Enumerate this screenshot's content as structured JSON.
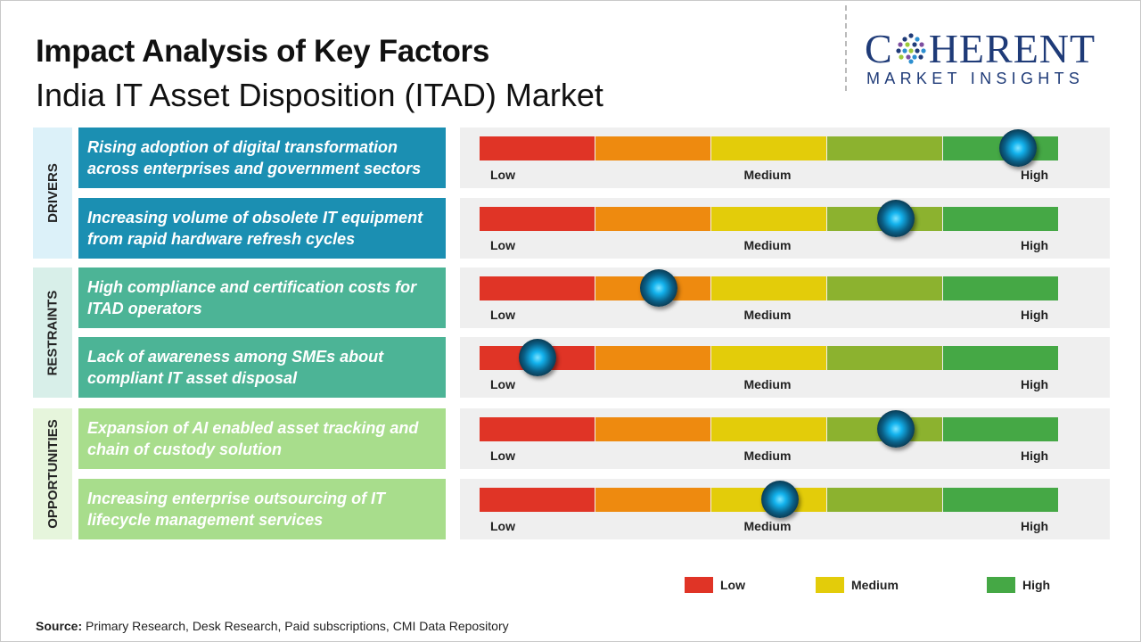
{
  "header": {
    "title": "Impact Analysis of Key Factors",
    "subtitle": "India IT Asset Disposition (ITAD) Market"
  },
  "logo": {
    "top_left": "C",
    "top_right": "HERENT",
    "bottom": "MARKET INSIGHTS",
    "color": "#1f3b78"
  },
  "chart_data": {
    "type": "table",
    "scale_labels": [
      "Low",
      "Medium",
      "High"
    ],
    "segment_colors": [
      "#e03426",
      "#ee8a0f",
      "#e3cc0a",
      "#8cb22f",
      "#45a845"
    ],
    "categories": [
      {
        "name": "DRIVERS",
        "color": "#dcf1f9",
        "factor_color": "#1b8fb2"
      },
      {
        "name": "RESTRAINTS",
        "color": "#d8efe9",
        "factor_color": "#4cb496"
      },
      {
        "name": "OPPORTUNITIES",
        "color": "#e6f5dc",
        "factor_color": "#a8dd8c"
      }
    ],
    "factors": [
      {
        "category": "DRIVERS",
        "text": "Rising adoption of digital transformation across enterprises and government sectors",
        "impact": 0.93
      },
      {
        "category": "DRIVERS",
        "text": "Increasing volume of obsolete IT equipment from rapid hardware refresh cycles",
        "impact": 0.72
      },
      {
        "category": "RESTRAINTS",
        "text": "High compliance and certification costs for ITAD operators",
        "impact": 0.31
      },
      {
        "category": "RESTRAINTS",
        "text": "Lack of awareness among SMEs about compliant IT asset disposal",
        "impact": 0.1
      },
      {
        "category": "OPPORTUNITIES",
        "text": "Expansion of AI enabled asset tracking and chain of custody solution",
        "impact": 0.72
      },
      {
        "category": "OPPORTUNITIES",
        "text": "Increasing enterprise outsourcing of IT lifecycle management services",
        "impact": 0.52
      }
    ],
    "legend": [
      {
        "label": "Low",
        "color": "#e03426"
      },
      {
        "label": "Medium",
        "color": "#e3cc0a"
      },
      {
        "label": "High",
        "color": "#45a845"
      }
    ]
  },
  "source": {
    "label": "Source:",
    "text": " Primary Research, Desk Research, Paid subscriptions, CMI Data Repository"
  }
}
